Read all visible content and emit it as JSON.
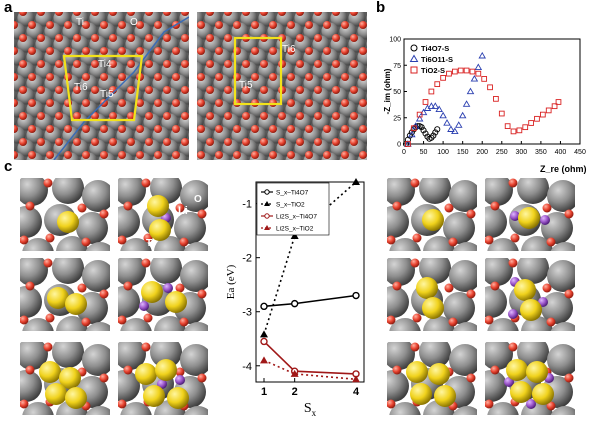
{
  "panels": {
    "a": "a",
    "b": "b",
    "c": "c"
  },
  "surface_labels": {
    "left": {
      "ti": "Ti",
      "o": "O",
      "ti4": "Ti4",
      "ti6": "Ti6",
      "ti5": "Ti5"
    },
    "right": {
      "ti5": "Ti5",
      "ti6": "Ti6"
    }
  },
  "atom_labels": {
    "s": "S",
    "li": "Li",
    "o": "O",
    "ti": "Ti"
  },
  "colors": {
    "ti": "#8e8e8e",
    "o": "#e8422f",
    "s": "#f0d21c",
    "li": "#9a55c9",
    "box": "#f2e21a",
    "line": "#3a6bb5"
  },
  "chart_data": [
    {
      "type": "scatter",
      "title": "",
      "xlabel": "Z_re (ohm)",
      "ylabel": "-Z_im (ohm)",
      "xlim": [
        0,
        450
      ],
      "ylim": [
        0,
        100
      ],
      "xticks": [
        0,
        50,
        100,
        150,
        200,
        250,
        300,
        350,
        400,
        450
      ],
      "yticks": [
        0,
        25,
        50,
        75,
        100
      ],
      "legend_position": "top-left",
      "series": [
        {
          "name": "Ti4O7-S",
          "marker": "circle",
          "color": "#000000",
          "x": [
            5,
            10,
            15,
            20,
            25,
            30,
            35,
            40,
            45,
            50,
            55,
            60,
            65,
            70,
            75,
            80,
            85
          ],
          "y": [
            0,
            4,
            8,
            11,
            14,
            16,
            17,
            17,
            16,
            13,
            10,
            7,
            5,
            6,
            8,
            11,
            14
          ]
        },
        {
          "name": "Ti6O11-S",
          "marker": "triangle",
          "color": "#2a3fb0",
          "x": [
            10,
            20,
            30,
            40,
            50,
            60,
            70,
            80,
            90,
            100,
            110,
            120,
            130,
            140,
            150,
            160,
            170,
            180,
            190,
            200
          ],
          "y": [
            0,
            9,
            17,
            24,
            30,
            34,
            36,
            36,
            33,
            27,
            20,
            14,
            12,
            18,
            27,
            38,
            50,
            62,
            73,
            84
          ]
        },
        {
          "name": "TiO2-S",
          "marker": "square",
          "color": "#d92020",
          "x": [
            10,
            25,
            40,
            55,
            70,
            85,
            100,
            115,
            130,
            145,
            160,
            175,
            190,
            205,
            220,
            235,
            250,
            265,
            280,
            295,
            310,
            325,
            340,
            355,
            370,
            385,
            395
          ],
          "y": [
            0,
            15,
            28,
            40,
            50,
            57,
            63,
            67,
            69,
            70,
            70,
            69,
            67,
            62,
            54,
            43,
            29,
            17,
            12,
            13,
            16,
            20,
            24,
            28,
            32,
            36,
            40
          ]
        }
      ]
    },
    {
      "type": "line",
      "title": "",
      "xlabel": "S_x",
      "ylabel": "Ea (eV)",
      "ylim": [
        -4.3,
        -0.6
      ],
      "xticks": [
        1,
        2,
        4
      ],
      "yticks": [
        -1,
        -2,
        -3,
        -4
      ],
      "legend_position": "top-left",
      "series": [
        {
          "name": "S_x–Ti4O7",
          "style": "solid",
          "marker": "circle",
          "color": "#000000",
          "x": [
            1,
            2,
            4
          ],
          "y": [
            -2.9,
            -2.85,
            -2.7
          ]
        },
        {
          "name": "S_x–TiO2",
          "style": "dotted",
          "marker": "triangle",
          "color": "#000000",
          "x": [
            1,
            2,
            4
          ],
          "y": [
            -3.42,
            -1.6,
            -0.6
          ]
        },
        {
          "name": "Li2S_x–Ti4O7",
          "style": "solid",
          "marker": "circle",
          "color": "#a01818",
          "x": [
            1,
            2,
            4
          ],
          "y": [
            -3.55,
            -4.1,
            -4.15
          ]
        },
        {
          "name": "Li2S_x–TiO2",
          "style": "dotted",
          "marker": "triangle",
          "color": "#a01818",
          "x": [
            1,
            2,
            4
          ],
          "y": [
            -3.9,
            -4.15,
            -4.25
          ]
        }
      ]
    }
  ]
}
